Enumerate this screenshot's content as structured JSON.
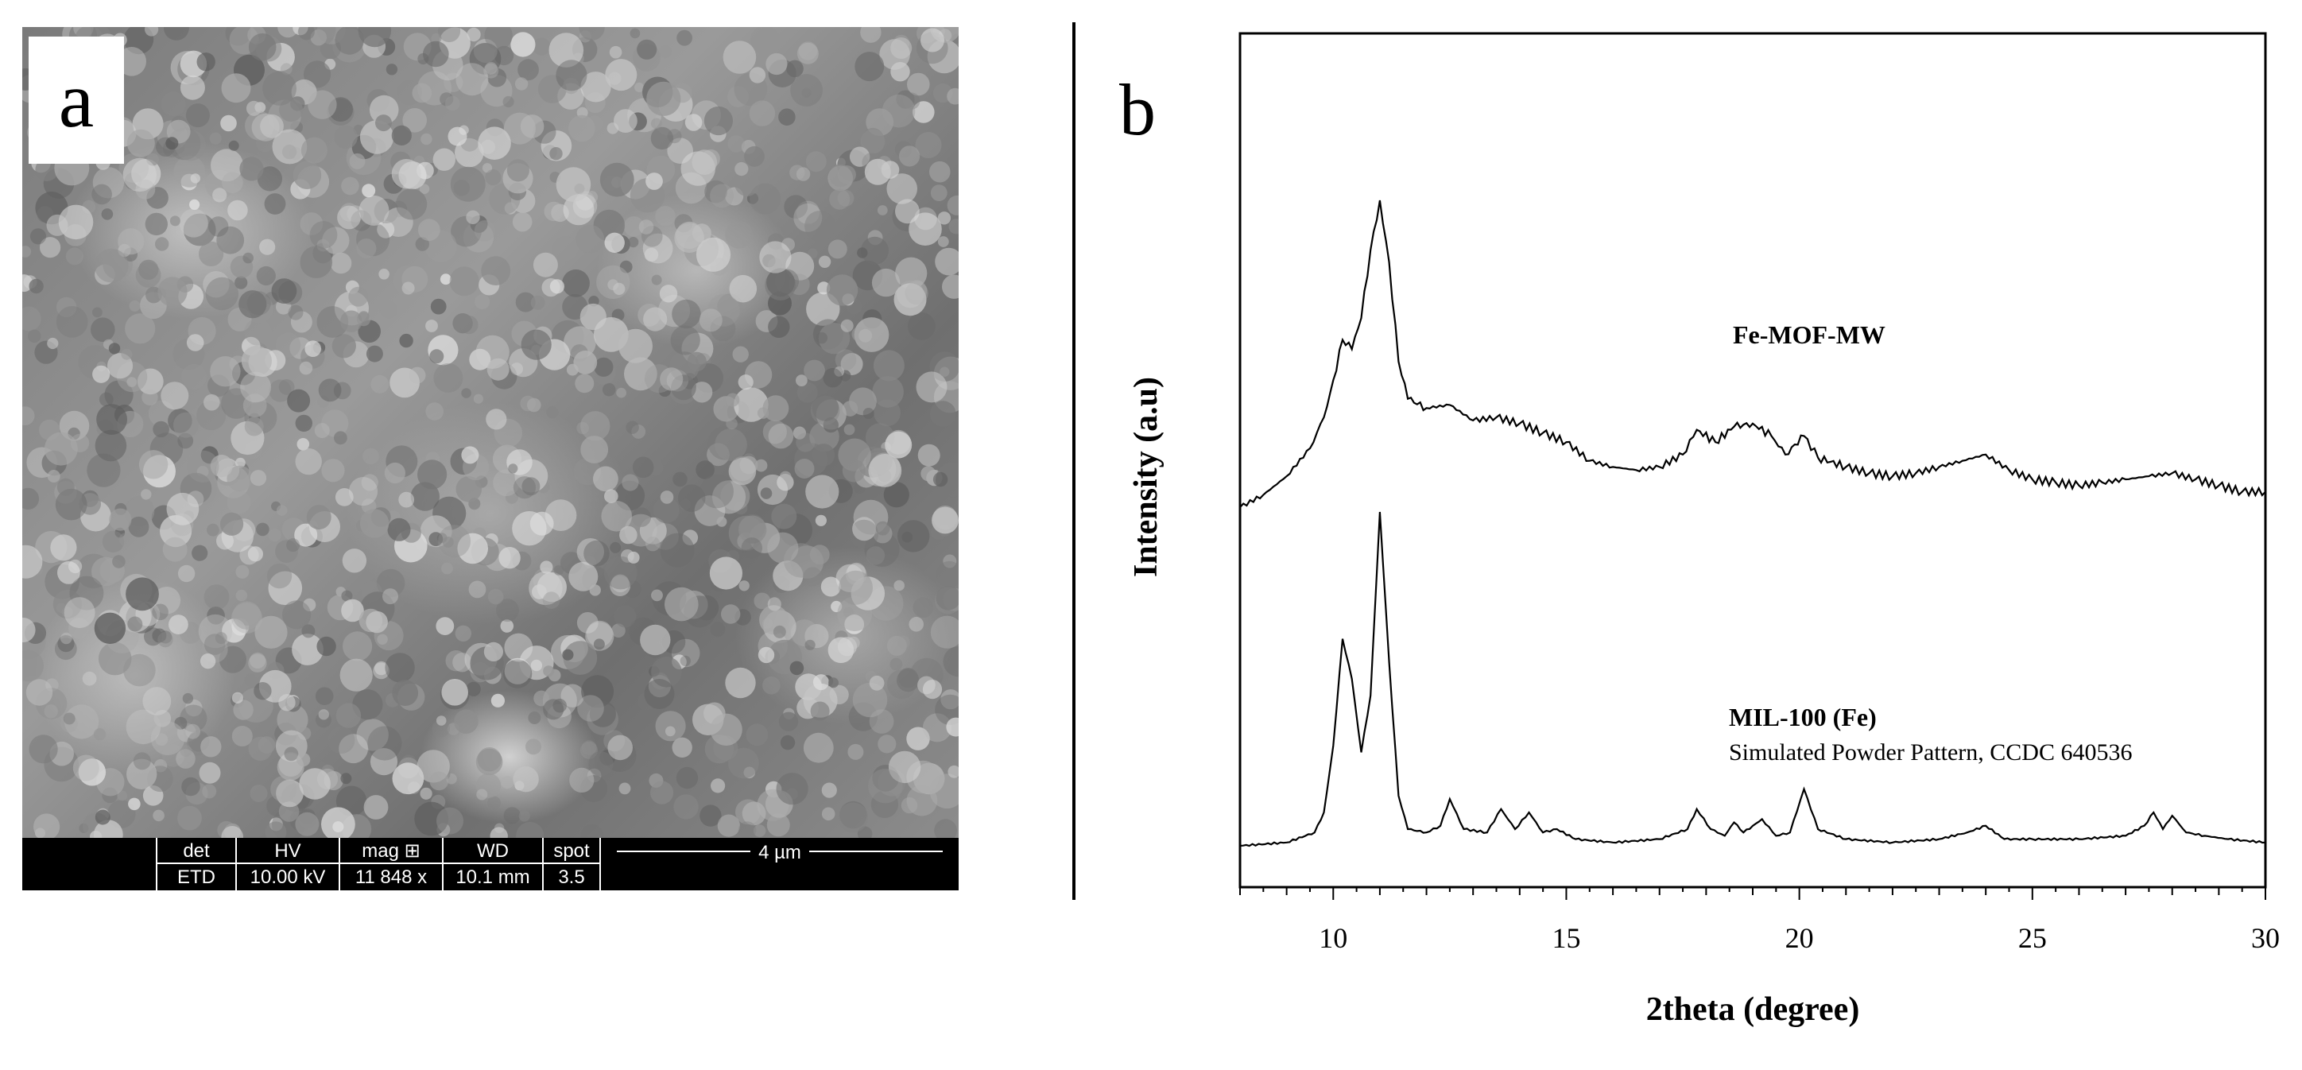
{
  "panel_a": {
    "label": "a",
    "sem_info": {
      "headers": [
        "det",
        "HV",
        "mag ⊞",
        "WD",
        "spot"
      ],
      "values": [
        "ETD",
        "10.00 kV",
        "11 848 x",
        "10.1 mm",
        "3.5"
      ],
      "scale_bar": "4 µm"
    }
  },
  "panel_b": {
    "label": "b"
  },
  "chart_data": {
    "type": "line",
    "xlabel": "2theta (degree)",
    "ylabel": "Intensity (a.u)",
    "xlim": [
      8,
      30
    ],
    "xticks": [
      10,
      15,
      20,
      25,
      30
    ],
    "y_ticks_labeled": false,
    "legend": "none",
    "grid": false,
    "annotations": [
      {
        "text": "Fe-MOF-MW",
        "series": "Fe-MOF-MW",
        "bold": true
      },
      {
        "text": "MIL-100 (Fe)",
        "series": "MIL-100 (Fe)",
        "bold": true
      },
      {
        "text": "Simulated Powder Pattern, CCDC 640536",
        "series": "MIL-100 (Fe)",
        "bold": false
      }
    ],
    "series": [
      {
        "name": "Fe-MOF-MW",
        "x": [
          8.0,
          8.5,
          9.0,
          9.5,
          9.8,
          10.0,
          10.2,
          10.4,
          10.6,
          10.8,
          11.0,
          11.2,
          11.4,
          11.6,
          12.0,
          12.5,
          13.0,
          13.5,
          14.0,
          14.5,
          15.0,
          15.5,
          16.0,
          16.5,
          17.0,
          17.5,
          17.8,
          18.2,
          18.6,
          19.0,
          19.4,
          19.7,
          20.1,
          20.4,
          21.0,
          21.5,
          22.0,
          22.5,
          23.0,
          23.5,
          24.0,
          24.5,
          25.0,
          25.5,
          26.0,
          26.5,
          27.0,
          27.5,
          28.0,
          28.5,
          29.0,
          29.5,
          30.0
        ],
        "y": [
          0.01,
          0.05,
          0.11,
          0.2,
          0.3,
          0.42,
          0.55,
          0.52,
          0.62,
          0.84,
          1.0,
          0.8,
          0.48,
          0.36,
          0.33,
          0.34,
          0.29,
          0.3,
          0.28,
          0.25,
          0.22,
          0.16,
          0.14,
          0.13,
          0.14,
          0.18,
          0.26,
          0.22,
          0.27,
          0.28,
          0.24,
          0.18,
          0.24,
          0.17,
          0.14,
          0.12,
          0.11,
          0.12,
          0.14,
          0.16,
          0.18,
          0.13,
          0.1,
          0.09,
          0.08,
          0.09,
          0.1,
          0.11,
          0.12,
          0.1,
          0.08,
          0.06,
          0.06
        ]
      },
      {
        "name": "MIL-100 (Fe)",
        "x": [
          8.0,
          9.0,
          9.6,
          9.8,
          10.0,
          10.2,
          10.4,
          10.6,
          10.8,
          11.0,
          11.2,
          11.4,
          11.6,
          12.0,
          12.3,
          12.5,
          12.8,
          13.3,
          13.6,
          13.9,
          14.2,
          14.5,
          14.8,
          15.2,
          16.0,
          17.0,
          17.6,
          17.8,
          18.1,
          18.4,
          18.6,
          18.8,
          19.0,
          19.2,
          19.5,
          19.8,
          20.1,
          20.4,
          21.0,
          22.0,
          23.0,
          23.6,
          24.0,
          24.4,
          25.0,
          26.0,
          27.0,
          27.4,
          27.6,
          27.8,
          28.0,
          28.3,
          28.7,
          29.2,
          30.0
        ],
        "y": [
          0.0,
          0.01,
          0.04,
          0.1,
          0.3,
          0.62,
          0.5,
          0.28,
          0.45,
          1.0,
          0.55,
          0.15,
          0.05,
          0.04,
          0.06,
          0.14,
          0.05,
          0.04,
          0.11,
          0.05,
          0.1,
          0.04,
          0.05,
          0.02,
          0.01,
          0.02,
          0.05,
          0.11,
          0.05,
          0.03,
          0.07,
          0.04,
          0.06,
          0.08,
          0.03,
          0.04,
          0.17,
          0.05,
          0.02,
          0.01,
          0.02,
          0.04,
          0.06,
          0.02,
          0.02,
          0.02,
          0.03,
          0.06,
          0.1,
          0.05,
          0.09,
          0.04,
          0.03,
          0.02,
          0.01
        ]
      }
    ]
  }
}
